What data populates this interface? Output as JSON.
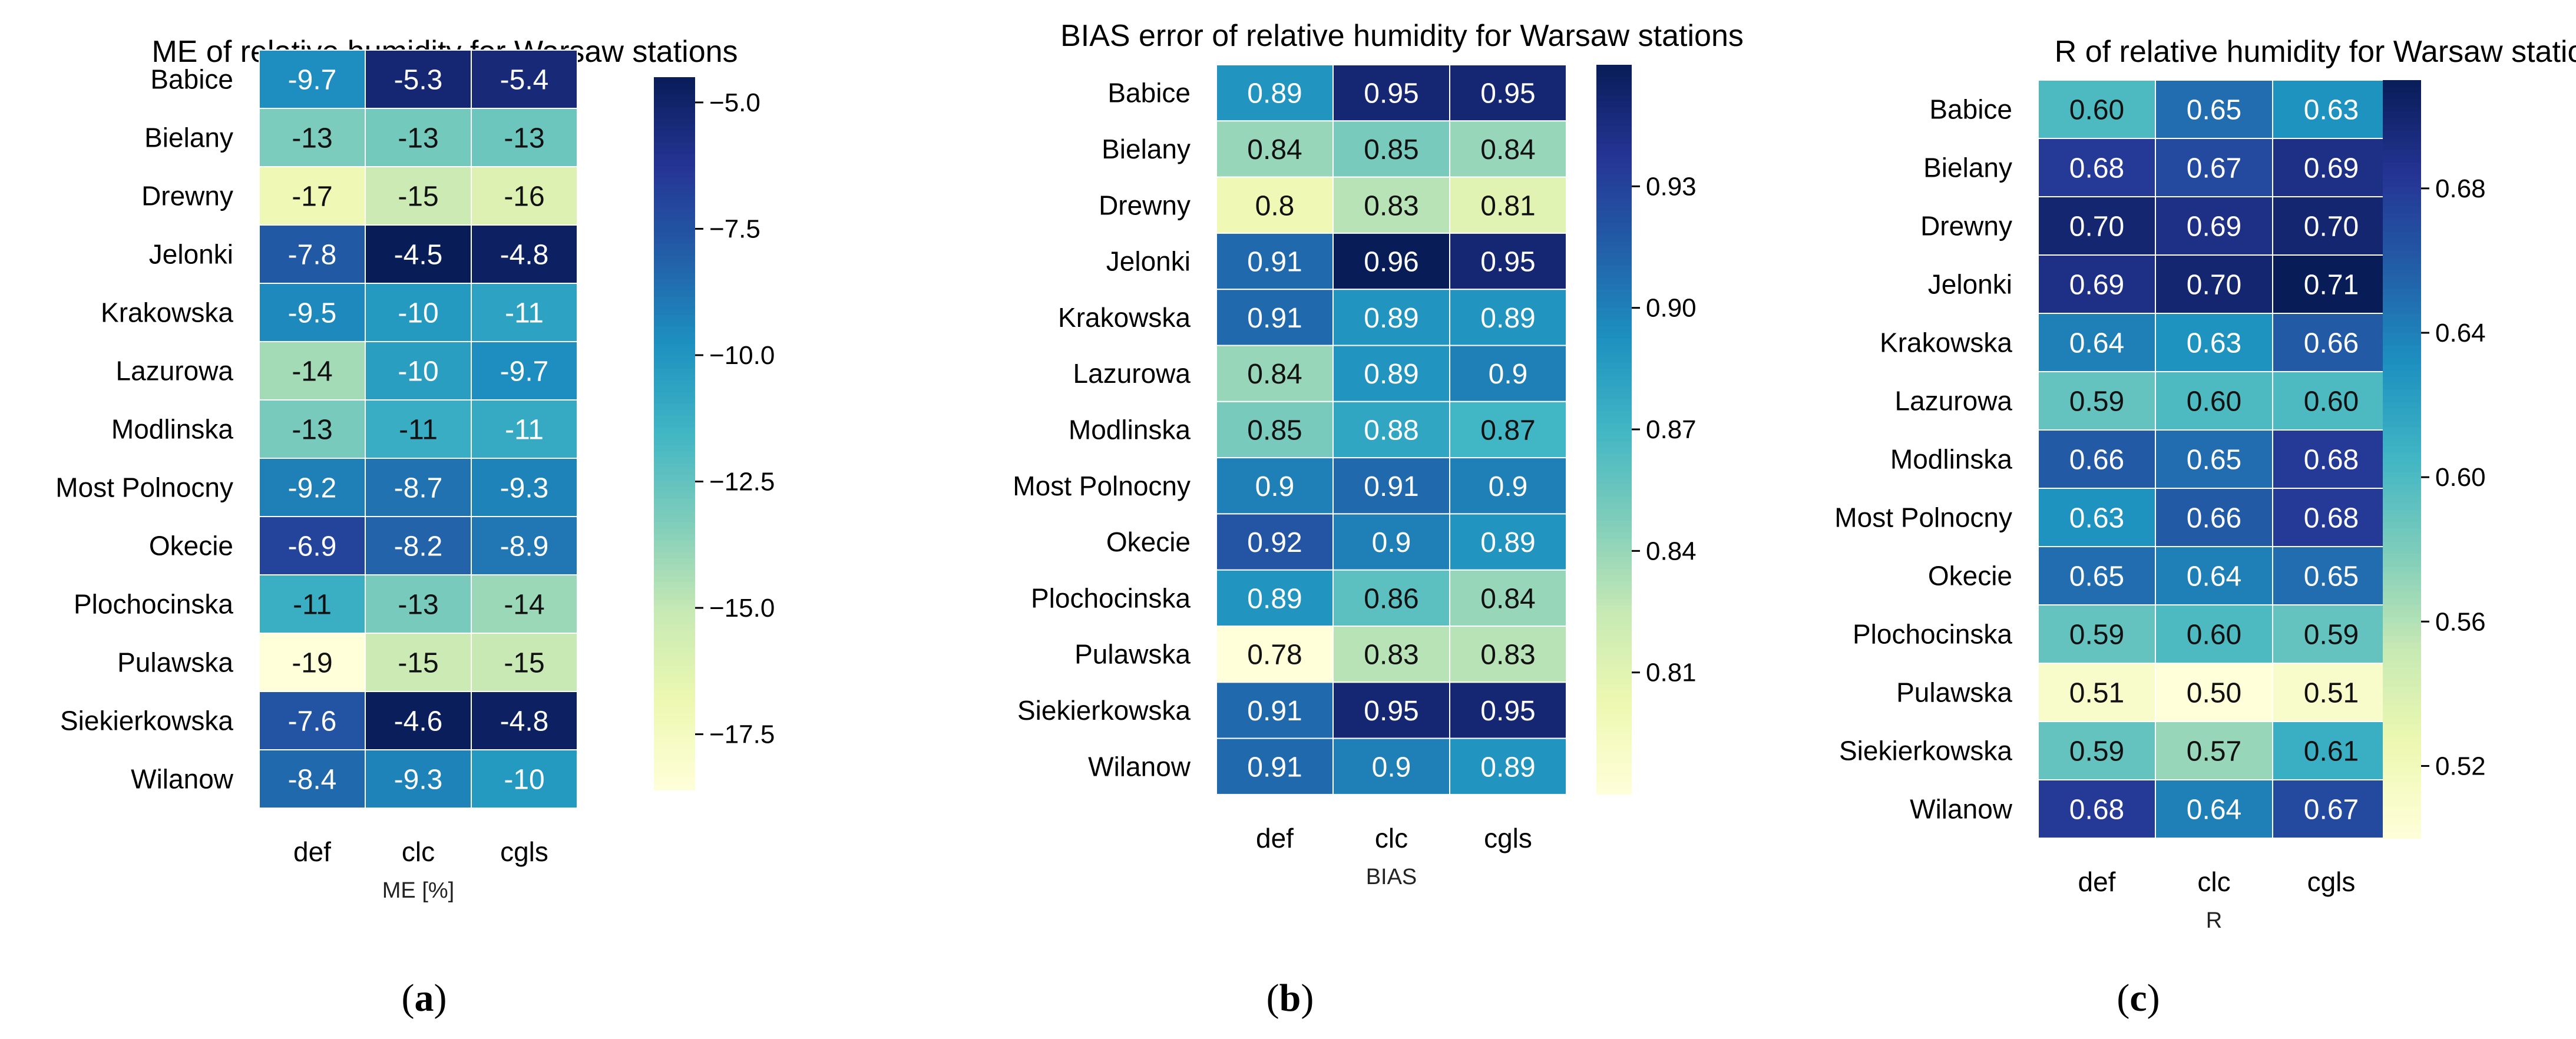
{
  "colors": {
    "YlGnBu": [
      "#ffffd9",
      "#edf8b1",
      "#c7e9b4",
      "#7fcdbb",
      "#41b6c4",
      "#1d91c0",
      "#225ea8",
      "#253494",
      "#081d58"
    ],
    "cell_border": "#ffffff"
  },
  "chart_data": [
    {
      "type": "heatmap",
      "panel": "a",
      "title": "ME of relative humidity for Warsaw stations",
      "xlabel": "ME [%]",
      "columns": [
        "def",
        "clc",
        "cgls"
      ],
      "rows": [
        "Babice",
        "Bielany",
        "Drewny",
        "Jelonki",
        "Krakowska",
        "Lazurowa",
        "Modlinska",
        "Most Polnocny",
        "Okecie",
        "Plochocinska",
        "Pulawska",
        "Siekierkowska",
        "Wilanow"
      ],
      "values": [
        [
          -9.7,
          -5.3,
          -5.4
        ],
        [
          -13.2,
          -13.0,
          -12.8
        ],
        [
          -17.0,
          -15.3,
          -16.1
        ],
        [
          -7.8,
          -4.5,
          -4.8
        ],
        [
          -9.5,
          -10.2,
          -10.6
        ],
        [
          -14.2,
          -10.4,
          -9.7
        ],
        [
          -13.1,
          -11.1,
          -11.0
        ],
        [
          -9.2,
          -8.7,
          -9.3
        ],
        [
          -6.9,
          -8.2,
          -8.9
        ],
        [
          -11.2,
          -13.1,
          -14.0
        ],
        [
          -18.6,
          -15.3,
          -15.1
        ],
        [
          -7.6,
          -4.6,
          -4.8
        ],
        [
          -8.4,
          -9.3,
          -10.2
        ]
      ],
      "labels": [
        [
          "-9.7",
          "-5.3",
          "-5.4"
        ],
        [
          "-13",
          "-13",
          "-13"
        ],
        [
          "-17",
          "-15",
          "-16"
        ],
        [
          "-7.8",
          "-4.5",
          "-4.8"
        ],
        [
          "-9.5",
          "-10",
          "-11"
        ],
        [
          "-14",
          "-10",
          "-9.7"
        ],
        [
          "-13",
          "-11",
          "-11"
        ],
        [
          "-9.2",
          "-8.7",
          "-9.3"
        ],
        [
          "-6.9",
          "-8.2",
          "-8.9"
        ],
        [
          "-11",
          "-13",
          "-14"
        ],
        [
          "-19",
          "-15",
          "-15"
        ],
        [
          "-7.6",
          "-4.6",
          "-4.8"
        ],
        [
          "-8.4",
          "-9.3",
          "-10"
        ]
      ],
      "vmin": -18.6,
      "vmax": -4.5,
      "colorbar_ticks": [
        -5.0,
        -7.5,
        -10.0,
        -12.5,
        -15.0,
        -17.5
      ],
      "colorbar_tick_labels": [
        "−5.0",
        "−7.5",
        "−10.0",
        "−12.5",
        "−15.0",
        "−17.5"
      ]
    },
    {
      "type": "heatmap",
      "panel": "b",
      "title": "BIAS error of relative humidity for Warsaw stations",
      "xlabel": "BIAS",
      "columns": [
        "def",
        "clc",
        "cgls"
      ],
      "rows": [
        "Babice",
        "Bielany",
        "Drewny",
        "Jelonki",
        "Krakowska",
        "Lazurowa",
        "Modlinska",
        "Most Polnocny",
        "Okecie",
        "Plochocinska",
        "Pulawska",
        "Siekierkowska",
        "Wilanow"
      ],
      "values": [
        [
          0.89,
          0.95,
          0.95
        ],
        [
          0.84,
          0.85,
          0.84
        ],
        [
          0.8,
          0.83,
          0.81
        ],
        [
          0.91,
          0.96,
          0.95
        ],
        [
          0.91,
          0.89,
          0.89
        ],
        [
          0.84,
          0.89,
          0.9
        ],
        [
          0.85,
          0.88,
          0.87
        ],
        [
          0.9,
          0.91,
          0.9
        ],
        [
          0.92,
          0.9,
          0.89
        ],
        [
          0.89,
          0.86,
          0.84
        ],
        [
          0.78,
          0.83,
          0.83
        ],
        [
          0.91,
          0.95,
          0.95
        ],
        [
          0.91,
          0.9,
          0.89
        ]
      ],
      "labels": [
        [
          "0.89",
          "0.95",
          "0.95"
        ],
        [
          "0.84",
          "0.85",
          "0.84"
        ],
        [
          "0.8",
          "0.83",
          "0.81"
        ],
        [
          "0.91",
          "0.96",
          "0.95"
        ],
        [
          "0.91",
          "0.89",
          "0.89"
        ],
        [
          "0.84",
          "0.89",
          "0.9"
        ],
        [
          "0.85",
          "0.88",
          "0.87"
        ],
        [
          "0.9",
          "0.91",
          "0.9"
        ],
        [
          "0.92",
          "0.9",
          "0.89"
        ],
        [
          "0.89",
          "0.86",
          "0.84"
        ],
        [
          "0.78",
          "0.83",
          "0.83"
        ],
        [
          "0.91",
          "0.95",
          "0.95"
        ],
        [
          "0.91",
          "0.9",
          "0.89"
        ]
      ],
      "vmin": 0.78,
      "vmax": 0.96,
      "colorbar_ticks": [
        0.93,
        0.9,
        0.87,
        0.84,
        0.81
      ],
      "colorbar_tick_labels": [
        "0.93",
        "0.90",
        "0.87",
        "0.84",
        "0.81"
      ]
    },
    {
      "type": "heatmap",
      "panel": "c",
      "title": "R of relative humidity for Warsaw stations",
      "xlabel": "R",
      "columns": [
        "def",
        "clc",
        "cgls"
      ],
      "rows": [
        "Babice",
        "Bielany",
        "Drewny",
        "Jelonki",
        "Krakowska",
        "Lazurowa",
        "Modlinska",
        "Most Polnocny",
        "Okecie",
        "Plochocinska",
        "Pulawska",
        "Siekierkowska",
        "Wilanow"
      ],
      "values": [
        [
          0.6,
          0.65,
          0.63
        ],
        [
          0.68,
          0.67,
          0.69
        ],
        [
          0.7,
          0.69,
          0.7
        ],
        [
          0.69,
          0.7,
          0.71
        ],
        [
          0.64,
          0.63,
          0.66
        ],
        [
          0.59,
          0.6,
          0.6
        ],
        [
          0.66,
          0.65,
          0.68
        ],
        [
          0.63,
          0.66,
          0.68
        ],
        [
          0.65,
          0.64,
          0.65
        ],
        [
          0.59,
          0.6,
          0.59
        ],
        [
          0.51,
          0.5,
          0.51
        ],
        [
          0.59,
          0.57,
          0.61
        ],
        [
          0.68,
          0.64,
          0.67
        ]
      ],
      "labels": [
        [
          "0.60",
          "0.65",
          "0.63"
        ],
        [
          "0.68",
          "0.67",
          "0.69"
        ],
        [
          "0.70",
          "0.69",
          "0.70"
        ],
        [
          "0.69",
          "0.70",
          "0.71"
        ],
        [
          "0.64",
          "0.63",
          "0.66"
        ],
        [
          "0.59",
          "0.60",
          "0.60"
        ],
        [
          "0.66",
          "0.65",
          "0.68"
        ],
        [
          "0.63",
          "0.66",
          "0.68"
        ],
        [
          "0.65",
          "0.64",
          "0.65"
        ],
        [
          "0.59",
          "0.60",
          "0.59"
        ],
        [
          "0.51",
          "0.50",
          "0.51"
        ],
        [
          "0.59",
          "0.57",
          "0.61"
        ],
        [
          "0.68",
          "0.64",
          "0.67"
        ]
      ],
      "vmin": 0.5,
      "vmax": 0.71,
      "colorbar_ticks": [
        0.68,
        0.64,
        0.6,
        0.56,
        0.52
      ],
      "colorbar_tick_labels": [
        "0.68",
        "0.64",
        "0.60",
        "0.56",
        "0.52"
      ]
    }
  ],
  "panel_labels": [
    {
      "open": "(",
      "letter": "a",
      "close": ")"
    },
    {
      "open": "(",
      "letter": "b",
      "close": ")"
    },
    {
      "open": "(",
      "letter": "c",
      "close": ")"
    }
  ]
}
